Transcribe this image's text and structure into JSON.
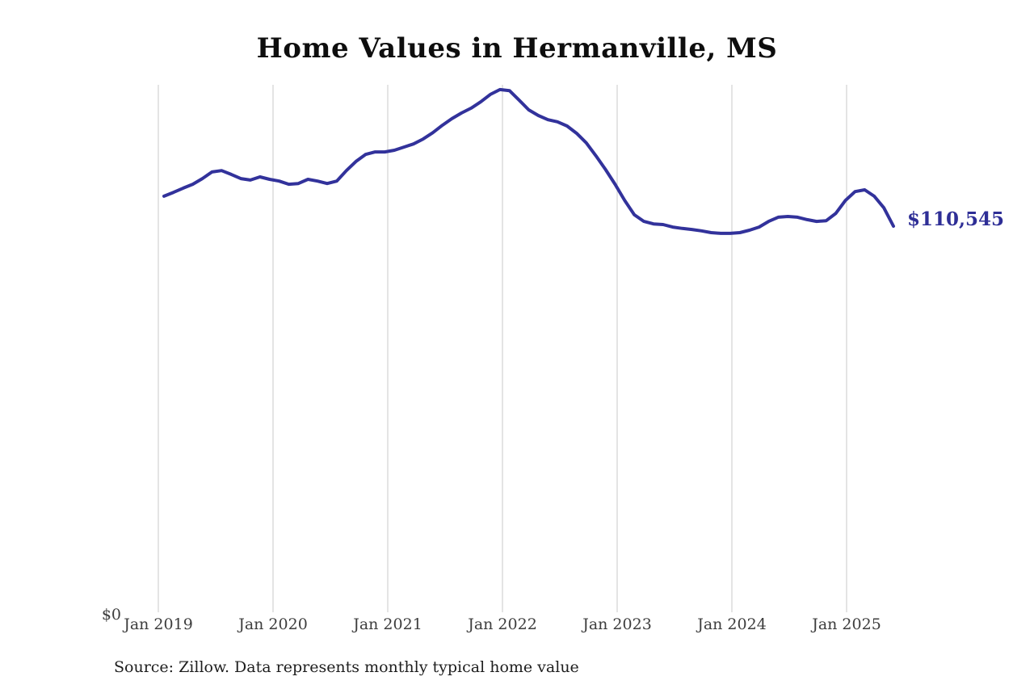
{
  "title": "Home Values in Hermanville, MS",
  "source_note": "Source: Zillow. Data represents monthly typical home value",
  "end_label": "$110,545",
  "y_zero_label": "$0",
  "colors": {
    "line": "#32329B",
    "end_label_text": "#2e2e96",
    "grid": "#c9c9c9",
    "tick_text": "#3d3d3d",
    "title_text": "#0e0e0e"
  },
  "chart_data": {
    "type": "line",
    "title": "Home Values in Hermanville, MS",
    "series_name": "Monthly typical home value",
    "unit": "USD",
    "frequency": "monthly",
    "x_start": "Jan 2019",
    "x_end": "May 2025",
    "x_ticks": [
      "Jan 2019",
      "Jan 2020",
      "Jan 2021",
      "Jan 2022",
      "Jan 2023",
      "Jan 2024",
      "Jan 2025"
    ],
    "xlabel": "",
    "ylabel": "",
    "ylim": [
      0,
      155000
    ],
    "grid": "vertical-only",
    "legend": "none",
    "final_value": 110545,
    "values": [
      119100,
      120200,
      121400,
      122500,
      124100,
      126000,
      126400,
      125300,
      124100,
      123700,
      124600,
      123900,
      123400,
      122500,
      122700,
      123900,
      123400,
      122700,
      123400,
      126400,
      129000,
      131000,
      131700,
      131700,
      132200,
      133100,
      134000,
      135400,
      137200,
      139300,
      141200,
      142800,
      144200,
      146000,
      148100,
      149500,
      149200,
      146500,
      143700,
      142100,
      140900,
      140300,
      139100,
      137000,
      134300,
      130600,
      126700,
      122500,
      117900,
      113800,
      111900,
      111200,
      111000,
      110300,
      109900,
      109600,
      109200,
      108700,
      108500,
      108500,
      108700,
      109400,
      110300,
      111900,
      113100,
      113300,
      113100,
      112400,
      111900,
      112100,
      114200,
      117900,
      120400,
      120900,
      119100,
      115800,
      110545
    ]
  }
}
